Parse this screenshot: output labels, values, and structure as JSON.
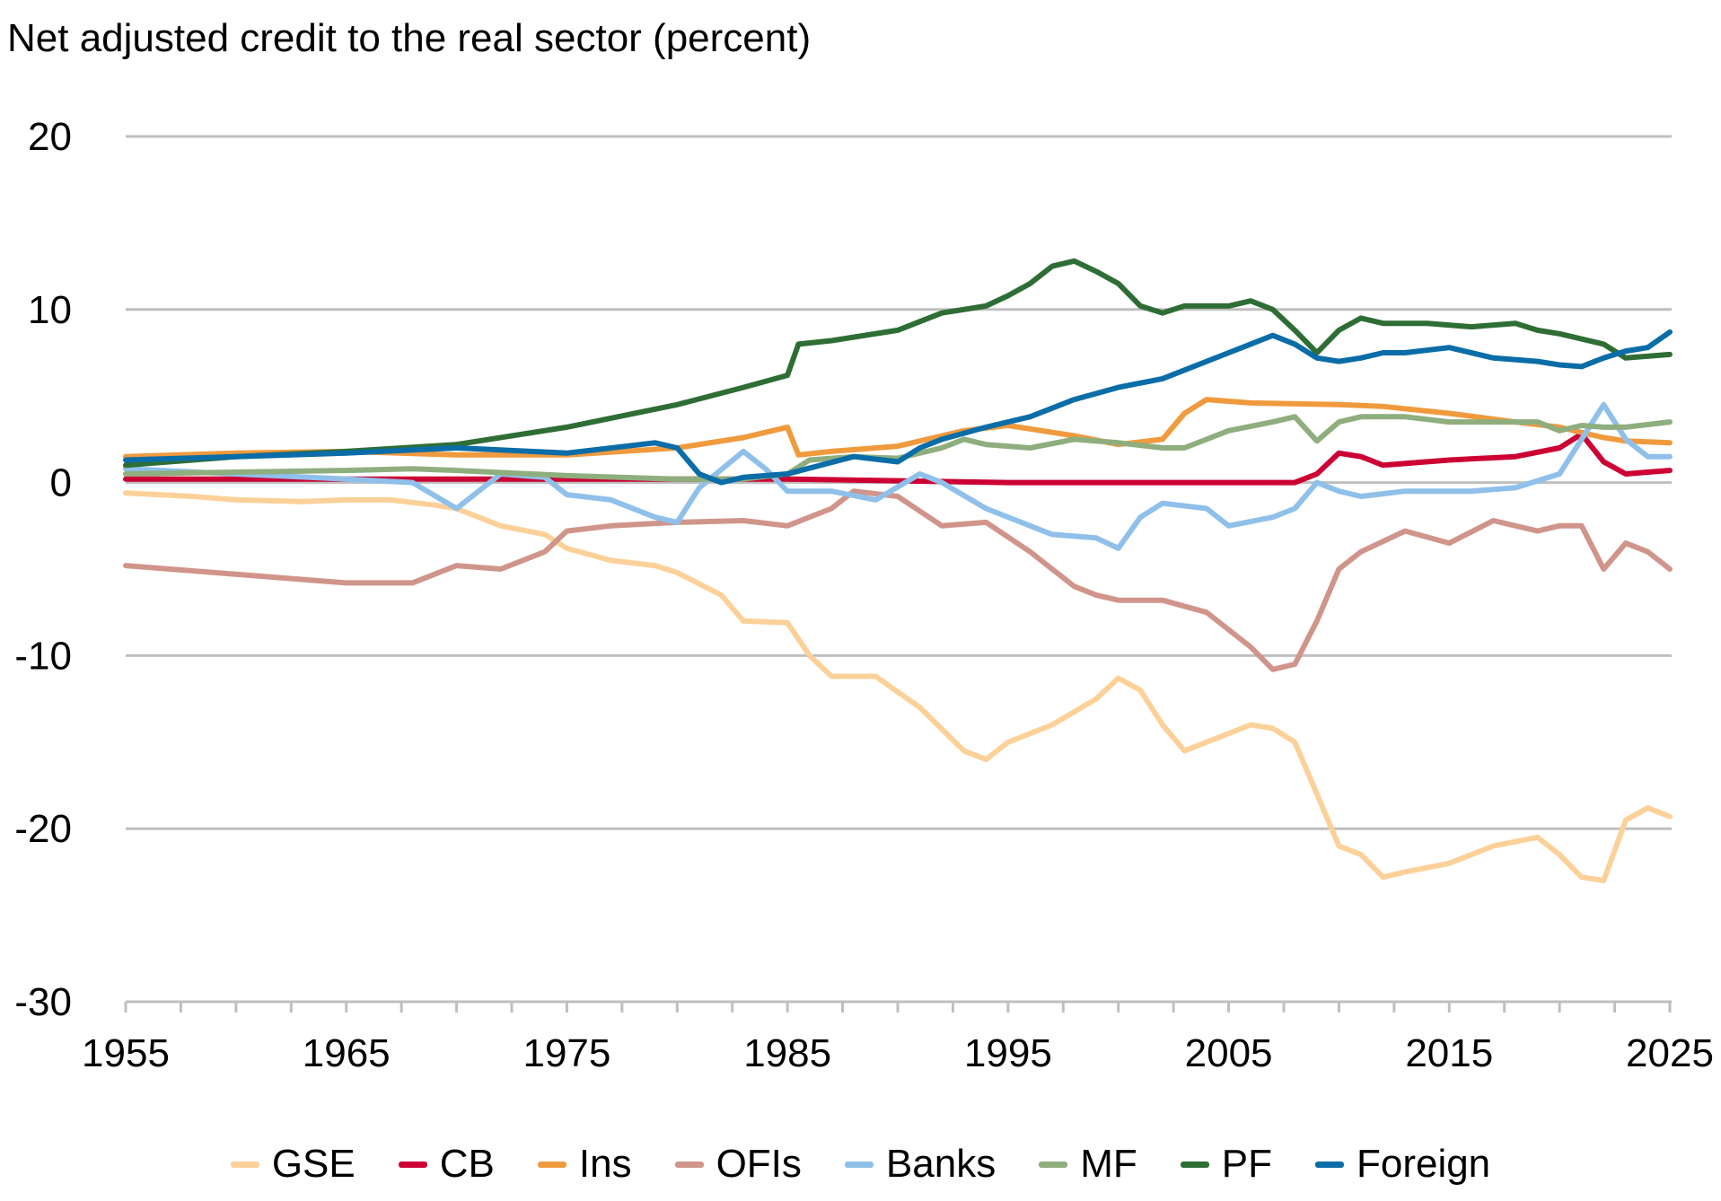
{
  "chart_data": {
    "type": "line",
    "title": "Net adjusted credit to the real sector (percent)",
    "xlabel": "",
    "ylabel": "",
    "xlim": [
      1955,
      2025
    ],
    "ylim": [
      -30,
      20
    ],
    "yticks": [
      20,
      10,
      0,
      -10,
      -20,
      -30
    ],
    "xticks": [
      1955,
      1965,
      1975,
      1985,
      1995,
      2005,
      2015,
      2025
    ],
    "grid": "horizontal",
    "legend_position": "bottom",
    "series": [
      {
        "name": "GSE",
        "color": "#fcd199",
        "x": [
          1955,
          1958,
          1960,
          1963,
          1965,
          1967,
          1969,
          1970,
          1972,
          1974,
          1975,
          1977,
          1979,
          1980,
          1982,
          1983,
          1985,
          1986,
          1987,
          1989,
          1991,
          1993,
          1994,
          1995,
          1997,
          1999,
          2000,
          2001,
          2002,
          2003,
          2005,
          2006,
          2007,
          2008,
          2009,
          2010,
          2011,
          2012,
          2013,
          2015,
          2017,
          2019,
          2020,
          2021,
          2022,
          2023,
          2024,
          2025
        ],
        "y": [
          -0.6,
          -0.8,
          -1.0,
          -1.1,
          -1.0,
          -1.0,
          -1.3,
          -1.5,
          -2.5,
          -3.0,
          -3.8,
          -4.5,
          -4.8,
          -5.2,
          -6.5,
          -8.0,
          -8.1,
          -10.0,
          -11.2,
          -11.2,
          -13.0,
          -15.5,
          -16.0,
          -15.0,
          -14.0,
          -12.5,
          -11.3,
          -12.0,
          -14.0,
          -15.5,
          -14.5,
          -14.0,
          -14.2,
          -15.0,
          -18.0,
          -21.0,
          -21.5,
          -22.8,
          -22.5,
          -22.0,
          -21.0,
          -20.5,
          -21.5,
          -22.8,
          -23.0,
          -19.5,
          -18.8,
          -19.3
        ]
      },
      {
        "name": "CB",
        "color": "#cc0033",
        "x": [
          1955,
          1965,
          1975,
          1985,
          1995,
          2000,
          2005,
          2008,
          2009,
          2010,
          2011,
          2012,
          2015,
          2018,
          2020,
          2021,
          2022,
          2023,
          2024,
          2025
        ],
        "y": [
          0.2,
          0.2,
          0.2,
          0.2,
          0.0,
          0.0,
          0.0,
          0.0,
          0.5,
          1.7,
          1.5,
          1.0,
          1.3,
          1.5,
          2.0,
          2.8,
          1.2,
          0.5,
          0.6,
          0.7
        ]
      },
      {
        "name": "Ins",
        "color": "#f09a3e",
        "x": [
          1955,
          1960,
          1965,
          1970,
          1975,
          1980,
          1983,
          1985,
          1985.5,
          1987,
          1990,
          1993,
          1995,
          1998,
          2000,
          2002,
          2003,
          2004,
          2006,
          2010,
          2012,
          2015,
          2018,
          2020,
          2022,
          2023,
          2025
        ],
        "y": [
          1.5,
          1.7,
          1.8,
          1.6,
          1.6,
          2.0,
          2.6,
          3.2,
          1.6,
          1.8,
          2.1,
          3.0,
          3.3,
          2.7,
          2.2,
          2.5,
          4.0,
          4.8,
          4.6,
          4.5,
          4.4,
          4.0,
          3.5,
          3.2,
          2.6,
          2.4,
          2.3
        ]
      },
      {
        "name": "OFIs",
        "color": "#d0958a",
        "x": [
          1955,
          1960,
          1962,
          1965,
          1968,
          1970,
          1972,
          1974,
          1975,
          1977,
          1980,
          1983,
          1985,
          1987,
          1988,
          1990,
          1992,
          1994,
          1996,
          1998,
          1999,
          2000,
          2002,
          2004,
          2006,
          2007,
          2008,
          2009,
          2010,
          2011,
          2013,
          2015,
          2017,
          2019,
          2020,
          2021,
          2022,
          2023,
          2024,
          2025
        ],
        "y": [
          -4.8,
          -5.3,
          -5.5,
          -5.8,
          -5.8,
          -4.8,
          -5.0,
          -4.0,
          -2.8,
          -2.5,
          -2.3,
          -2.2,
          -2.5,
          -1.5,
          -0.5,
          -0.8,
          -2.5,
          -2.3,
          -4.0,
          -6.0,
          -6.5,
          -6.8,
          -6.8,
          -7.5,
          -9.5,
          -10.8,
          -10.5,
          -8.0,
          -5.0,
          -4.0,
          -2.8,
          -3.5,
          -2.2,
          -2.8,
          -2.5,
          -2.5,
          -5.0,
          -3.5,
          -4.0,
          -5.0
        ]
      },
      {
        "name": "Banks",
        "color": "#8fc0ea",
        "x": [
          1955,
          1960,
          1965,
          1968,
          1970,
          1971,
          1972,
          1974,
          1975,
          1977,
          1979,
          1980,
          1981,
          1983,
          1984,
          1985,
          1987,
          1989,
          1991,
          1992,
          1994,
          1996,
          1997,
          1999,
          2000,
          2001,
          2002,
          2004,
          2005,
          2007,
          2008,
          2009,
          2010,
          2011,
          2013,
          2016,
          2018,
          2020,
          2021,
          2022,
          2023,
          2024,
          2025
        ],
        "y": [
          0.8,
          0.5,
          0.2,
          0.0,
          -1.5,
          -0.5,
          0.5,
          0.3,
          -0.7,
          -1.0,
          -2.0,
          -2.3,
          -0.3,
          1.8,
          0.8,
          -0.5,
          -0.5,
          -1.0,
          0.5,
          0.0,
          -1.5,
          -2.5,
          -3.0,
          -3.2,
          -3.8,
          -2.0,
          -1.2,
          -1.5,
          -2.5,
          -2.0,
          -1.5,
          0.0,
          -0.5,
          -0.8,
          -0.5,
          -0.5,
          -0.3,
          0.5,
          2.5,
          4.5,
          2.5,
          1.5,
          1.5
        ]
      },
      {
        "name": "MF",
        "color": "#8fae7e",
        "x": [
          1955,
          1960,
          1965,
          1968,
          1970,
          1975,
          1980,
          1983,
          1985,
          1986,
          1988,
          1990,
          1992,
          1993,
          1994,
          1996,
          1998,
          2000,
          2002,
          2003,
          2005,
          2007,
          2008,
          2009,
          2010,
          2011,
          2013,
          2015,
          2017,
          2019,
          2020,
          2021,
          2022,
          2023,
          2025
        ],
        "y": [
          0.5,
          0.6,
          0.7,
          0.8,
          0.7,
          0.4,
          0.2,
          0.2,
          0.5,
          1.3,
          1.5,
          1.4,
          2.0,
          2.5,
          2.2,
          2.0,
          2.5,
          2.3,
          2.0,
          2.0,
          3.0,
          3.5,
          3.8,
          2.4,
          3.5,
          3.8,
          3.8,
          3.5,
          3.5,
          3.5,
          3.0,
          3.3,
          3.2,
          3.2,
          3.5
        ]
      },
      {
        "name": "PF",
        "color": "#2e6e35",
        "x": [
          1955,
          1960,
          1965,
          1970,
          1975,
          1980,
          1983,
          1985,
          1985.5,
          1987,
          1990,
          1992,
          1994,
          1995,
          1996,
          1997,
          1998,
          1999,
          2000,
          2001,
          2002,
          2003,
          2004,
          2005,
          2006,
          2007,
          2008,
          2009,
          2010,
          2011,
          2012,
          2014,
          2016,
          2018,
          2019,
          2020,
          2022,
          2023,
          2025
        ],
        "y": [
          1.0,
          1.5,
          1.8,
          2.2,
          3.2,
          4.5,
          5.5,
          6.2,
          8.0,
          8.2,
          8.8,
          9.8,
          10.2,
          10.8,
          11.5,
          12.5,
          12.8,
          12.2,
          11.5,
          10.2,
          9.8,
          10.2,
          10.2,
          10.2,
          10.5,
          10.0,
          8.8,
          7.5,
          8.8,
          9.5,
          9.2,
          9.2,
          9.0,
          9.2,
          8.8,
          8.6,
          8.0,
          7.2,
          7.4
        ]
      },
      {
        "name": "Foreign",
        "color": "#0a6da8",
        "x": [
          1955,
          1960,
          1965,
          1970,
          1975,
          1979,
          1980,
          1981,
          1982,
          1983,
          1985,
          1988,
          1990,
          1991,
          1992,
          1994,
          1996,
          1998,
          2000,
          2002,
          2003,
          2005,
          2006,
          2007,
          2008,
          2009,
          2010,
          2011,
          2012,
          2013,
          2015,
          2017,
          2019,
          2020,
          2021,
          2022,
          2023,
          2024,
          2025
        ],
        "y": [
          1.3,
          1.5,
          1.7,
          2.0,
          1.7,
          2.3,
          2.0,
          0.5,
          0.0,
          0.3,
          0.5,
          1.5,
          1.2,
          2.0,
          2.5,
          3.2,
          3.8,
          4.8,
          5.5,
          6.0,
          6.5,
          7.5,
          8.0,
          8.5,
          8.0,
          7.2,
          7.0,
          7.2,
          7.5,
          7.5,
          7.8,
          7.2,
          7.0,
          6.8,
          6.7,
          7.2,
          7.6,
          7.8,
          8.7
        ]
      }
    ]
  }
}
